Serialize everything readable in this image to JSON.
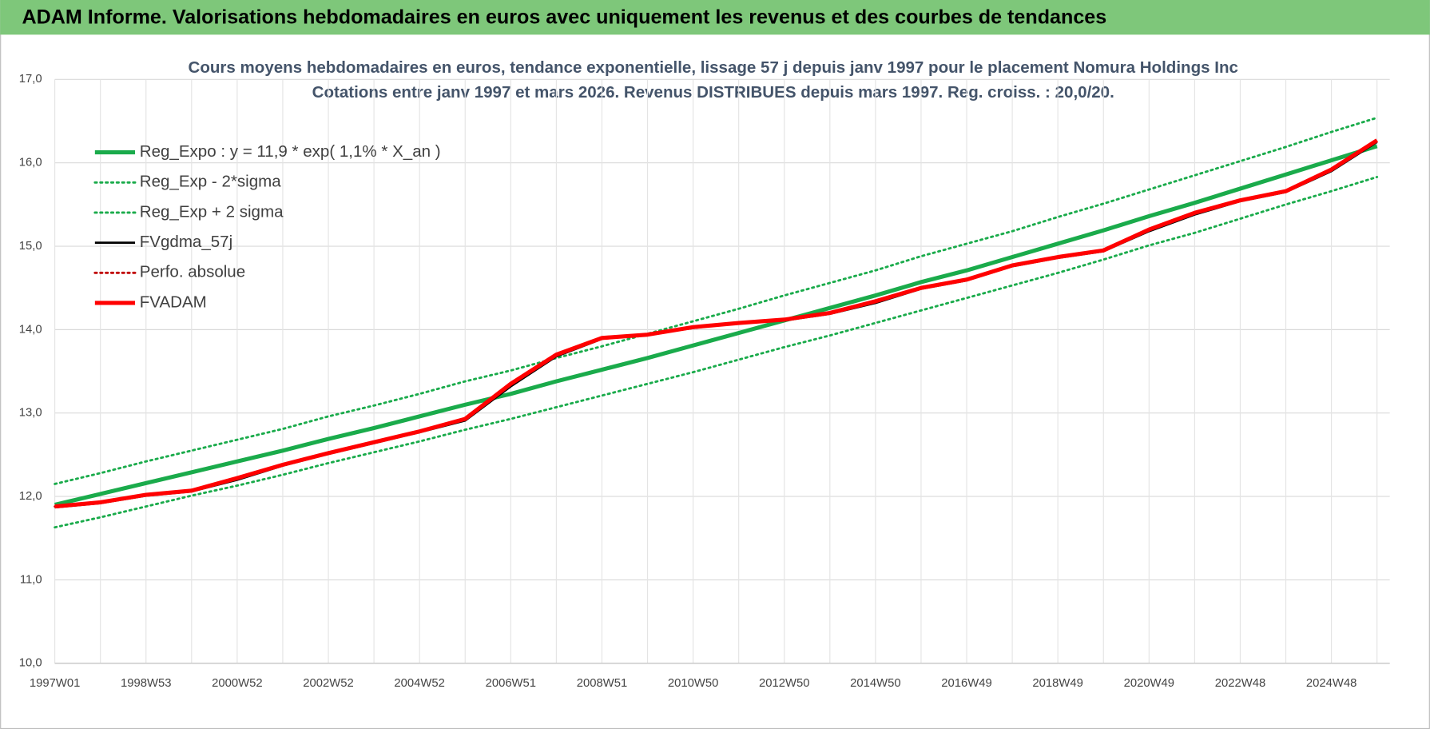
{
  "header": {
    "title": "ADAM Informe. Valorisations hebdomadaires en euros avec uniquement les revenus et des courbes de tendances"
  },
  "chart_data": {
    "type": "line",
    "title": "Cours moyens hebdomadaires en euros, tendance exponentielle, lissage 57 j depuis janv 1997 pour le placement Nomura Holdings Inc",
    "subtitle": "Cotations entre janv 1997 et mars 2026. Revenus DISTRIBUES depuis mars 1997. Reg. croiss. : 20,0/20.",
    "categories": [
      "1997W01",
      null,
      "1998W53",
      null,
      "2000W52",
      null,
      "2002W52",
      null,
      "2004W52",
      null,
      "2006W51",
      null,
      "2008W51",
      null,
      "2010W50",
      null,
      "2012W50",
      null,
      "2014W50",
      null,
      "2016W49",
      null,
      "2018W49",
      null,
      "2020W49",
      null,
      "2022W48",
      null,
      "2024W48",
      null
    ],
    "ylim": [
      10,
      17
    ],
    "yticks": [
      {
        "value": 10,
        "label": "10,0"
      },
      {
        "value": 11,
        "label": "11,0"
      },
      {
        "value": 12,
        "label": "12,0"
      },
      {
        "value": 13,
        "label": "13,0"
      },
      {
        "value": 14,
        "label": "14,0"
      },
      {
        "value": 15,
        "label": "15,0"
      },
      {
        "value": 16,
        "label": "16,0"
      },
      {
        "value": 17,
        "label": "17,0"
      }
    ],
    "grid": true,
    "legend": "top-left",
    "series": [
      {
        "name": "Reg_Expo : y = 11,9 * exp( 1,1% *  X_an )",
        "color": "#1aab4b",
        "line_style": "thick",
        "values": [
          11.9,
          12.03,
          12.16,
          12.29,
          12.42,
          12.55,
          12.69,
          12.82,
          12.96,
          13.1,
          13.23,
          13.38,
          13.52,
          13.66,
          13.81,
          13.96,
          14.11,
          14.26,
          14.41,
          14.57,
          14.71,
          14.87,
          15.03,
          15.19,
          15.36,
          15.52,
          15.69,
          15.86,
          16.03,
          16.2
        ]
      },
      {
        "name": "Reg_Exp - 2*sigma",
        "color": "#1aab4b",
        "line_style": "dotted",
        "values": [
          11.63,
          11.75,
          11.88,
          12.01,
          12.13,
          12.26,
          12.4,
          12.53,
          12.66,
          12.8,
          12.93,
          13.07,
          13.21,
          13.35,
          13.49,
          13.64,
          13.79,
          13.93,
          14.08,
          14.23,
          14.38,
          14.53,
          14.68,
          14.84,
          15.01,
          15.16,
          15.33,
          15.5,
          15.66,
          15.83
        ]
      },
      {
        "name": "Reg_Exp + 2 sigma",
        "color": "#1aab4b",
        "line_style": "dotted",
        "values": [
          12.15,
          12.28,
          12.42,
          12.55,
          12.68,
          12.81,
          12.96,
          13.09,
          13.23,
          13.38,
          13.51,
          13.66,
          13.8,
          13.95,
          14.1,
          14.25,
          14.41,
          14.56,
          14.71,
          14.88,
          15.03,
          15.18,
          15.35,
          15.51,
          15.68,
          15.85,
          16.02,
          16.19,
          16.37,
          16.54
        ]
      },
      {
        "name": "FVgdma_57j",
        "color": "#000000",
        "line_style": "solid",
        "values": [
          11.87,
          11.92,
          12.01,
          12.06,
          12.2,
          12.37,
          12.51,
          12.64,
          12.77,
          12.91,
          13.32,
          13.68,
          13.89,
          13.94,
          14.02,
          14.08,
          14.11,
          14.19,
          14.32,
          14.49,
          14.59,
          14.76,
          14.86,
          14.94,
          15.18,
          15.38,
          15.54,
          15.65,
          15.9,
          16.25
        ]
      },
      {
        "name": "Perfo. absolue",
        "color": "#c00000",
        "line_style": "dotted",
        "values": [
          11.88,
          11.93,
          12.02,
          12.07,
          12.22,
          12.38,
          12.52,
          12.65,
          12.78,
          12.93,
          13.35,
          13.7,
          13.9,
          13.94,
          14.03,
          14.08,
          14.12,
          14.2,
          14.34,
          14.5,
          14.6,
          14.77,
          14.87,
          14.95,
          15.2,
          15.4,
          15.55,
          15.66,
          15.92,
          16.27
        ]
      },
      {
        "name": "FVADAM",
        "color": "#ff0000",
        "line_style": "thick",
        "values": [
          11.88,
          11.93,
          12.02,
          12.07,
          12.22,
          12.38,
          12.52,
          12.65,
          12.78,
          12.93,
          13.35,
          13.7,
          13.9,
          13.94,
          14.03,
          14.08,
          14.12,
          14.2,
          14.34,
          14.5,
          14.6,
          14.77,
          14.87,
          14.95,
          15.2,
          15.4,
          15.55,
          15.66,
          15.92,
          16.27
        ]
      }
    ]
  }
}
